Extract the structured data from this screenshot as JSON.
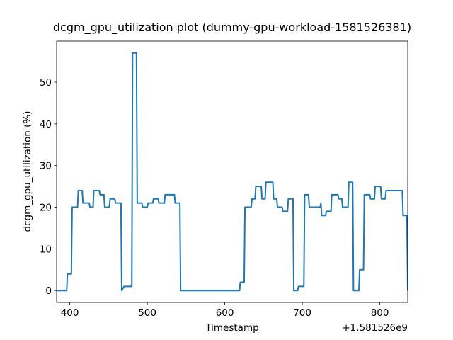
{
  "chart_data": {
    "type": "line",
    "title": "dcgm_gpu_utilization plot (dummy-gpu-workload-1581526381)",
    "x_label": "Timestamp",
    "y_label": "dcgm_gpu_utilization (%)",
    "x_offset_label": "+1.581526e9",
    "x": [
      383,
      396,
      397,
      402,
      403,
      410,
      411,
      416,
      417,
      425,
      426,
      430,
      431,
      438,
      439,
      444,
      445,
      451,
      452,
      458,
      459,
      466,
      467,
      470,
      480,
      481,
      486,
      487,
      493,
      494,
      500,
      501,
      507,
      508,
      514,
      515,
      522,
      523,
      535,
      536,
      542,
      543,
      619,
      620,
      625,
      626,
      634,
      635,
      639,
      640,
      647,
      648,
      652,
      653,
      662,
      663,
      667,
      668,
      674,
      675,
      681,
      682,
      688,
      689,
      694,
      695,
      702,
      703,
      708,
      709,
      723,
      724,
      725,
      730,
      731,
      737,
      738,
      746,
      747,
      751,
      752,
      759,
      760,
      765,
      766,
      773,
      774,
      779,
      780,
      787,
      788,
      793,
      794,
      801,
      802,
      807,
      808,
      829,
      830,
      835,
      836
    ],
    "series": [
      {
        "name": "dcgm_gpu_utilization",
        "color": "#1f77b4",
        "values": [
          0,
          0,
          4,
          4,
          20,
          20,
          24,
          24,
          21,
          21,
          20,
          20,
          24,
          24,
          23,
          23,
          20,
          20,
          22,
          22,
          21,
          21,
          0,
          1,
          1,
          57,
          57,
          21,
          21,
          20,
          20,
          21,
          21,
          22,
          22,
          21,
          21,
          23,
          23,
          21,
          21,
          0,
          0,
          2,
          2,
          20,
          20,
          22,
          22,
          25,
          25,
          22,
          22,
          26,
          26,
          22,
          22,
          20,
          20,
          19,
          19,
          22,
          22,
          0,
          0,
          1,
          1,
          23,
          23,
          20,
          20,
          21,
          18,
          18,
          19,
          19,
          23,
          23,
          22,
          22,
          20,
          20,
          26,
          26,
          0,
          0,
          5,
          5,
          23,
          23,
          22,
          22,
          25,
          25,
          22,
          22,
          24,
          24,
          18,
          18,
          0
        ]
      }
    ],
    "xlim": [
      383,
      836
    ],
    "ylim": [
      -2.85,
      59.85
    ],
    "xticks": [
      400,
      500,
      600,
      700,
      800
    ],
    "yticks": [
      0,
      10,
      20,
      30,
      40,
      50
    ]
  }
}
